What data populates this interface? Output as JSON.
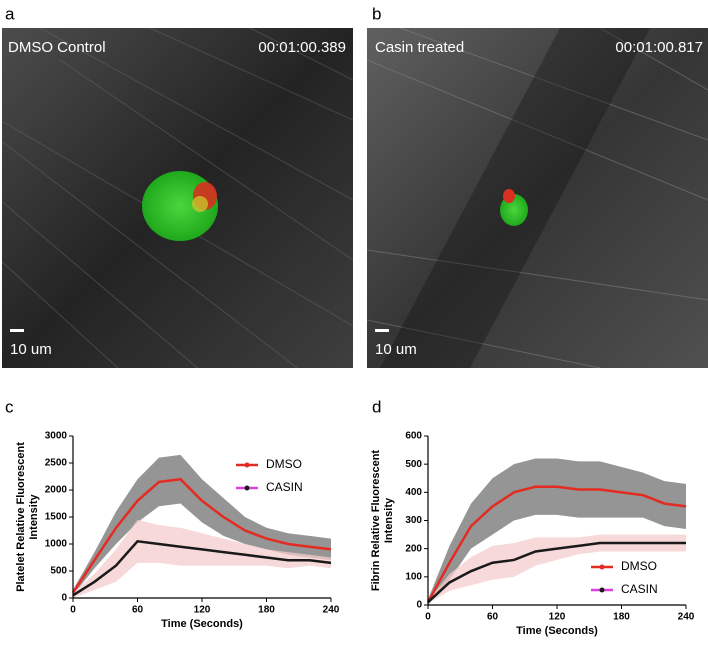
{
  "images": [
    {
      "label": "a",
      "caption": "DMSO Control",
      "timestamp": "00:01:00.389",
      "scale": "10 um"
    },
    {
      "label": "b",
      "caption": "Casin treated",
      "timestamp": "00:01:00.817",
      "scale": "10 um"
    }
  ],
  "chart_data": [
    {
      "type": "line",
      "panel_label": "c",
      "ylabel": [
        "Platelet Relative Fluorescent",
        "Intensity"
      ],
      "xlabel": "Time (Seconds)",
      "x": [
        0,
        20,
        40,
        60,
        80,
        100,
        120,
        140,
        160,
        180,
        200,
        220,
        240
      ],
      "xlim": [
        0,
        240
      ],
      "xticks": [
        0,
        60,
        120,
        180,
        240
      ],
      "ylim": [
        0,
        3000
      ],
      "yticks": [
        0,
        500,
        1000,
        1500,
        2000,
        2500,
        3000
      ],
      "legend": "upper right",
      "series": [
        {
          "name": "DMSO",
          "color": "#e32b22",
          "band_color": "#8a8a8a",
          "values": [
            100,
            700,
            1300,
            1800,
            2150,
            2200,
            1800,
            1500,
            1250,
            1100,
            1000,
            950,
            900
          ],
          "errors": [
            50,
            150,
            300,
            400,
            450,
            450,
            400,
            350,
            250,
            200,
            200,
            200,
            200
          ]
        },
        {
          "name": "CASIN",
          "color": "#1a1a1a",
          "band_color": "#f6cccc",
          "values": [
            50,
            300,
            600,
            1050,
            1000,
            950,
            900,
            850,
            800,
            750,
            700,
            700,
            650
          ],
          "errors": [
            50,
            150,
            300,
            400,
            350,
            350,
            300,
            250,
            200,
            150,
            150,
            100,
            100
          ]
        }
      ]
    },
    {
      "type": "line",
      "panel_label": "d",
      "ylabel": [
        "Fibrin Relative Fluorescent",
        "Intensity"
      ],
      "xlabel": "Time (Seconds)",
      "x": [
        0,
        20,
        40,
        60,
        80,
        100,
        120,
        140,
        160,
        180,
        200,
        220,
        240
      ],
      "xlim": [
        0,
        240
      ],
      "xticks": [
        0,
        60,
        120,
        180,
        240
      ],
      "ylim": [
        0,
        600
      ],
      "yticks": [
        0,
        100,
        200,
        300,
        400,
        500,
        600
      ],
      "legend": "lower right",
      "series": [
        {
          "name": "DMSO",
          "color": "#e32b22",
          "band_color": "#8a8a8a",
          "values": [
            10,
            150,
            280,
            350,
            400,
            420,
            420,
            410,
            410,
            400,
            390,
            360,
            350
          ],
          "errors": [
            10,
            60,
            80,
            100,
            100,
            100,
            100,
            100,
            100,
            90,
            80,
            80,
            80
          ]
        },
        {
          "name": "CASIN",
          "color": "#1a1a1a",
          "band_color": "#f6cccc",
          "values": [
            10,
            80,
            120,
            150,
            160,
            190,
            200,
            210,
            220,
            220,
            220,
            220,
            220
          ],
          "errors": [
            5,
            30,
            50,
            60,
            60,
            50,
            40,
            30,
            30,
            30,
            30,
            30,
            30
          ]
        }
      ]
    }
  ]
}
